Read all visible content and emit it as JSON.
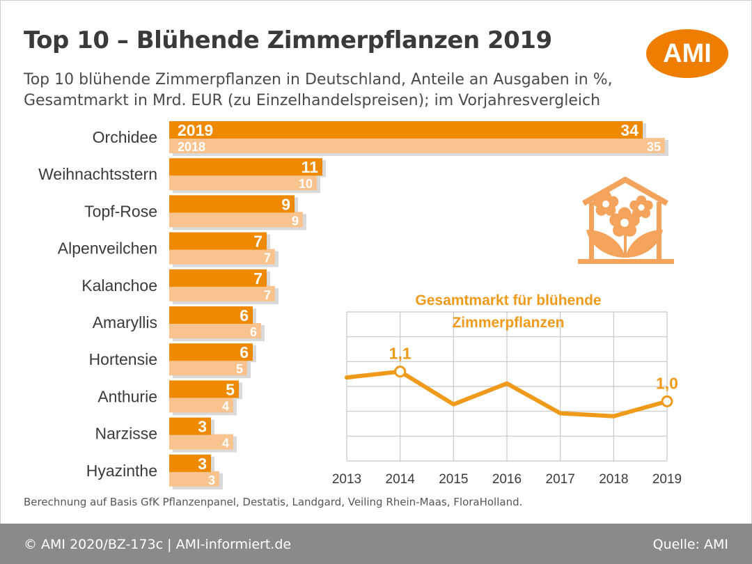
{
  "title": "Top 10 – Blühende Zimmerpflanzen  2019",
  "subtitle_line1": "Top 10 blühende Zimmerpflanzen in Deutschland, Anteile an Ausgaben in %,",
  "subtitle_line2": "Gesamtmarkt in Mrd. EUR (zu Einzelhandelspreisen); im Vorjahresvergleich",
  "logo_text": "AMI",
  "footnote": "Berechnung auf Basis GfK Pflanzenpanel, Destatis, Landgard, Veiling Rhein-Maas, FloraHolland.",
  "footer_left": "© AMI 2020/BZ-173c | AMI-informiert.de",
  "footer_right": "Quelle: AMI",
  "colors": {
    "bar_2019": "#ef8a00",
    "bar_2018": "#f8c38f",
    "line": "#ef9a1a",
    "icon": "#f3a35c"
  },
  "icon": "flower-house-icon",
  "chart_data": [
    {
      "type": "bar",
      "orientation": "horizontal",
      "categories": [
        "Orchidee",
        "Weihnachtsstern",
        "Topf-Rose",
        "Alpenveilchen",
        "Kalanchoe",
        "Amaryllis",
        "Hortensie",
        "Anthurie",
        "Narzisse",
        "Hyazinthe"
      ],
      "series": [
        {
          "name": "2019",
          "values": [
            34,
            11,
            9,
            7,
            7,
            6,
            6,
            5,
            3,
            3
          ]
        },
        {
          "name": "2018",
          "values": [
            35,
            10,
            9,
            7,
            7,
            6,
            5,
            4,
            4,
            3
          ]
        }
      ],
      "legend": "labels inside first bar"
    },
    {
      "type": "line",
      "title_line1": "Gesamtmarkt für blühende",
      "title_line2": "Zimmerpflanzen",
      "x": [
        "2013",
        "2014",
        "2015",
        "2016",
        "2017",
        "2018",
        "2019"
      ],
      "values": [
        1.08,
        1.1,
        0.99,
        1.06,
        0.96,
        0.95,
        1.0
      ],
      "labels": [
        {
          "x": "2014",
          "text": "1,1"
        },
        {
          "x": "2019",
          "text": "1,0"
        }
      ],
      "ylim": [
        0.8,
        1.3
      ],
      "grid": true
    }
  ]
}
